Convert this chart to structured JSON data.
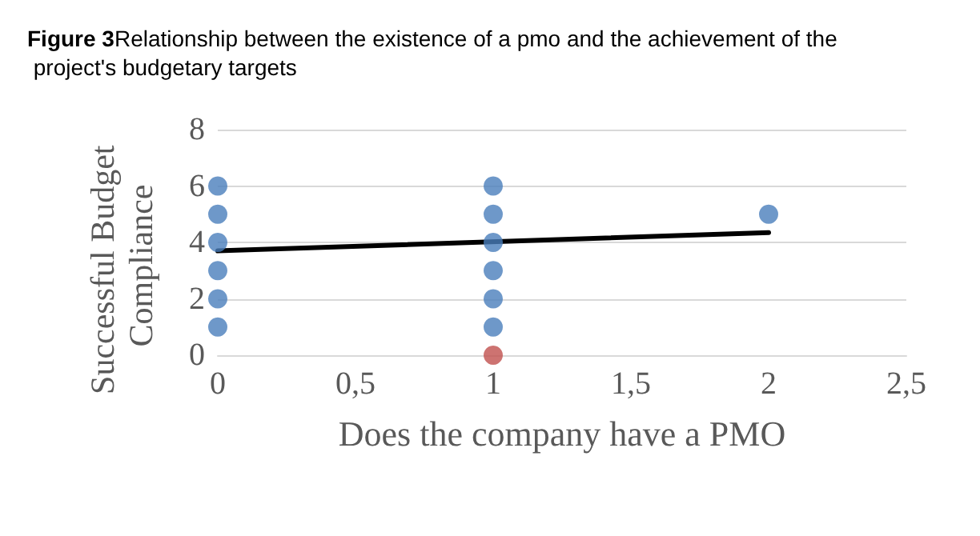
{
  "chart_data": {
    "type": "scatter",
    "title": "Figure 3",
    "subtitle": "Relationship between the existence of a pmo and the achievement of the project's budgetary targets",
    "xlabel": "Does the company have a PMO",
    "ylabel": "Successful Budget Compliance",
    "series": [
      {
        "color": "#4a7ebb",
        "x": [
          0,
          0,
          0,
          0,
          0,
          0,
          1,
          1,
          1,
          1,
          1,
          1,
          2
        ],
        "values": [
          1,
          2,
          3,
          4,
          5,
          6,
          1,
          2,
          3,
          4,
          5,
          6,
          5
        ]
      },
      {
        "color": "#c0504d",
        "x": [
          1
        ],
        "values": [
          0
        ]
      },
      {
        "type": "line",
        "marker": "none",
        "color": "#000000",
        "x": [
          0,
          2
        ],
        "values": [
          3.7,
          4.35
        ]
      }
    ],
    "xlim": [
      0,
      2.5
    ],
    "xticks": [
      0,
      {
        "value": 0.5,
        "label": "0,5"
      },
      1,
      {
        "value": 1.5,
        "label": "1,5"
      },
      2,
      {
        "value": 2.5,
        "label": "2,5"
      }
    ],
    "ylim": [
      0,
      8
    ],
    "yticks": [
      0,
      2,
      4,
      6,
      8
    ],
    "grid": "y",
    "marker": "circle",
    "line_style": "solid"
  }
}
